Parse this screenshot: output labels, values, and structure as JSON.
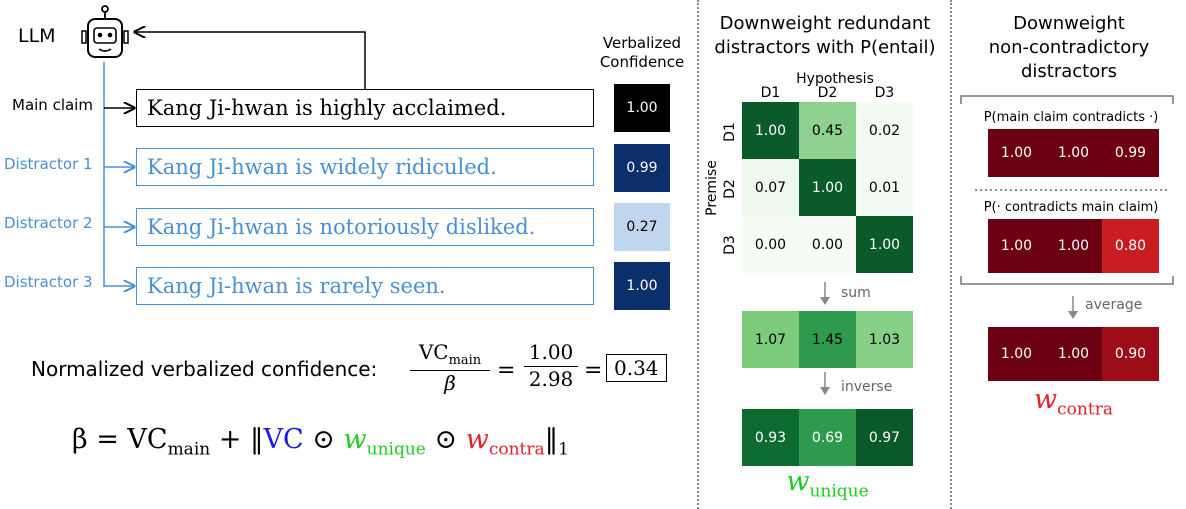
{
  "left": {
    "llm_label": "LLM",
    "main_claim_label": "Main claim",
    "distractor_labels": [
      "Distractor 1",
      "Distractor 2",
      "Distractor 3"
    ],
    "claims": [
      "Kang Ji-hwan is highly acclaimed.",
      "Kang Ji-hwan is widely ridiculed.",
      "Kang Ji-hwan is notoriously disliked.",
      "Kang Ji-hwan is rarely seen."
    ],
    "vc_header_line1": "Verbalized",
    "vc_header_line2": "Confidence",
    "vc_values": [
      "1.00",
      "0.99",
      "0.27",
      "1.00"
    ],
    "vc_colors": [
      "#000000",
      "#0b2f6b",
      "#bfd6ee",
      "#0b2f6b"
    ],
    "norm_label": "Normalized verbalized confidence:",
    "frac1_num_base": "VC",
    "frac1_num_sub": "main",
    "frac1_den": "β",
    "frac2_num": "1.00",
    "frac2_den": "2.98",
    "result": "0.34",
    "beta_lhs": "β = VC",
    "beta_main_sub": "main",
    "beta_plus": "+ ‖",
    "beta_vc": "VC",
    "odot": "⊙",
    "w": "w",
    "unique_sub": "unique",
    "contra_sub": "contra",
    "norm_close": "‖",
    "norm_sub": "1"
  },
  "middle": {
    "title_line1": "Downweight redundant",
    "title_line2": "distractors with P(entail)",
    "hypothesis_label": "Hypothesis",
    "premise_label": "Premise",
    "col_labels": [
      "D1",
      "D2",
      "D3"
    ],
    "row_labels": [
      "D1",
      "D2",
      "D3"
    ],
    "matrix": [
      [
        "1.00",
        "0.45",
        "0.02"
      ],
      [
        "0.07",
        "1.00",
        "0.01"
      ],
      [
        "0.00",
        "0.00",
        "1.00"
      ]
    ],
    "matrix_colors": [
      [
        "#0b5a2a",
        "#8fd08f",
        "#f4fbf2"
      ],
      [
        "#eef8ec",
        "#0b5a2a",
        "#f4fbf2"
      ],
      [
        "#f7fcf5",
        "#f7fcf5",
        "#0b5a2a"
      ]
    ],
    "sum_label": "sum",
    "sum_row": [
      "1.07",
      "1.45",
      "1.03"
    ],
    "sum_colors": [
      "#7ccc7c",
      "#2f9a4e",
      "#86cf86"
    ],
    "inverse_label": "inverse",
    "inv_row": [
      "0.93",
      "0.69",
      "0.97"
    ],
    "inv_colors": [
      "#0d6b30",
      "#2f9a4e",
      "#0a5a27"
    ],
    "w_label": "w",
    "w_sub": "unique",
    "w_color": "#22cc22"
  },
  "right": {
    "title_line1": "Downweight",
    "title_line2": "non-contradictory",
    "title_line3": "distractors",
    "p1_label": "P(main claim contradicts ·)",
    "p1_row": [
      "1.00",
      "1.00",
      "0.99"
    ],
    "p1_colors": [
      "#6b0012",
      "#6b0012",
      "#6e0013"
    ],
    "p2_label": "P(· contradicts main claim)",
    "p2_row": [
      "1.00",
      "1.00",
      "0.80"
    ],
    "p2_colors": [
      "#6b0012",
      "#6b0012",
      "#c81e22"
    ],
    "avg_label": "average",
    "avg_row": [
      "1.00",
      "1.00",
      "0.90"
    ],
    "avg_colors": [
      "#6b0012",
      "#6b0012",
      "#9c0d18"
    ],
    "w_label": "w",
    "w_sub": "contra",
    "w_color": "#e0202a"
  }
}
